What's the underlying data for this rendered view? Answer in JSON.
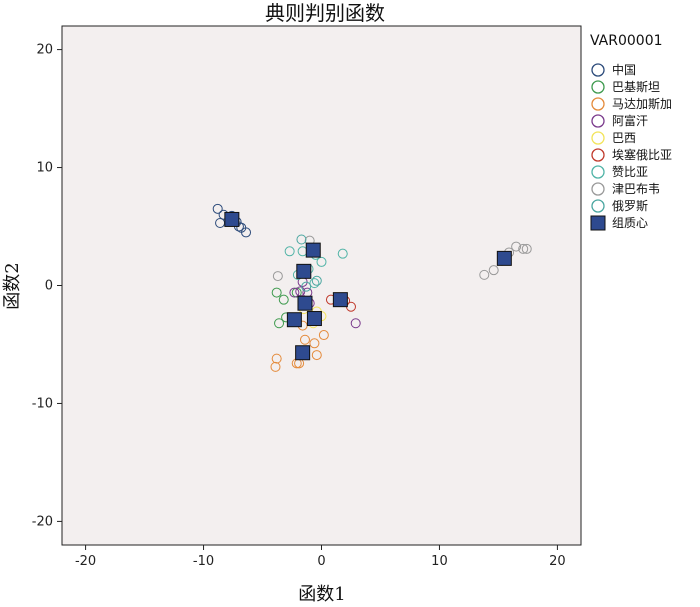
{
  "chart_data": {
    "type": "scatter",
    "title": "典则判别函数",
    "xlabel": "函数1",
    "ylabel": "函数2",
    "xlim": [
      -22,
      22
    ],
    "ylim": [
      -22,
      22
    ],
    "xticks": [
      -20,
      -10,
      0,
      10,
      20
    ],
    "yticks": [
      -20,
      -10,
      0,
      10,
      20
    ],
    "grid": false,
    "background": "#f3efef",
    "legend": {
      "title": "VAR00001",
      "placement": "right",
      "items": [
        {
          "label": "中国",
          "color": "#2b4a7a",
          "marker": "circle"
        },
        {
          "label": "巴基斯坦",
          "color": "#3e9a4e",
          "marker": "circle"
        },
        {
          "label": "马达加斯加",
          "color": "#e48a3a",
          "marker": "circle"
        },
        {
          "label": "阿富汗",
          "color": "#7a3a8c",
          "marker": "circle"
        },
        {
          "label": "巴西",
          "color": "#f2e45a",
          "marker": "circle"
        },
        {
          "label": "埃塞俄比亚",
          "color": "#c0392b",
          "marker": "circle"
        },
        {
          "label": "赞比亚",
          "color": "#4fb3a6",
          "marker": "circle"
        },
        {
          "label": "津巴布韦",
          "color": "#999999",
          "marker": "circle"
        },
        {
          "label": "俄罗斯",
          "color": "#4aa6a0",
          "marker": "circle"
        },
        {
          "label": "组质心",
          "color": "#2e4a8f",
          "marker": "square"
        }
      ]
    },
    "series": [
      {
        "name": "中国",
        "points": [
          [
            -8.8,
            6.5
          ],
          [
            -8.3,
            6.0
          ],
          [
            -7.6,
            5.9
          ],
          [
            -7.2,
            5.4
          ],
          [
            -6.8,
            4.9
          ],
          [
            -6.4,
            4.5
          ],
          [
            -7.0,
            5.0
          ],
          [
            -8.6,
            5.3
          ]
        ]
      },
      {
        "name": "巴基斯坦",
        "points": [
          [
            -3.6,
            -3.2
          ],
          [
            -3.0,
            -2.7
          ],
          [
            -3.8,
            -0.6
          ],
          [
            -3.2,
            -1.2
          ],
          [
            -2.1,
            -0.6
          ]
        ]
      },
      {
        "name": "马达加斯加",
        "points": [
          [
            -3.9,
            -6.9
          ],
          [
            -3.8,
            -6.2
          ],
          [
            -2.1,
            -6.6
          ],
          [
            -1.9,
            -6.6
          ],
          [
            -1.4,
            -4.6
          ],
          [
            -0.6,
            -4.9
          ],
          [
            -0.4,
            -5.9
          ],
          [
            0.2,
            -4.2
          ],
          [
            -1.6,
            -3.4
          ]
        ]
      },
      {
        "name": "阿富汗",
        "points": [
          [
            -2.3,
            -0.6
          ],
          [
            -1.8,
            -0.5
          ],
          [
            -1.2,
            -0.6
          ],
          [
            -1.6,
            0.3
          ],
          [
            -1.0,
            -1.5
          ],
          [
            2.9,
            -3.2
          ]
        ]
      },
      {
        "name": "巴西",
        "points": [
          [
            -1.5,
            -2.0
          ],
          [
            -0.7,
            -3.2
          ],
          [
            0.0,
            -2.6
          ],
          [
            -0.4,
            -2.2
          ]
        ]
      },
      {
        "name": "埃塞俄比亚",
        "points": [
          [
            0.8,
            -1.2
          ],
          [
            2.0,
            -1.3
          ],
          [
            2.5,
            -1.8
          ]
        ]
      },
      {
        "name": "赞比亚",
        "points": [
          [
            -2.7,
            2.9
          ],
          [
            -1.6,
            2.9
          ],
          [
            -0.5,
            2.6
          ],
          [
            0.0,
            2.0
          ],
          [
            1.8,
            2.7
          ],
          [
            -2.0,
            0.9
          ],
          [
            -1.1,
            1.4
          ],
          [
            -0.6,
            0.2
          ]
        ]
      },
      {
        "name": "津巴布韦",
        "points": [
          [
            13.8,
            0.9
          ],
          [
            14.6,
            1.3
          ],
          [
            15.3,
            2.1
          ],
          [
            15.9,
            2.8
          ],
          [
            16.5,
            3.3
          ],
          [
            17.1,
            3.1
          ],
          [
            17.4,
            3.1
          ],
          [
            -3.7,
            0.8
          ],
          [
            -1.0,
            3.8
          ]
        ]
      },
      {
        "name": "俄罗斯",
        "points": [
          [
            -1.7,
            3.9
          ],
          [
            -0.4,
            0.4
          ],
          [
            -1.3,
            -0.1
          ]
        ]
      },
      {
        "name": "组质心",
        "points": [
          [
            -7.6,
            5.6
          ],
          [
            -0.7,
            3.0
          ],
          [
            -1.5,
            1.2
          ],
          [
            -1.4,
            -1.5
          ],
          [
            1.6,
            -1.2
          ],
          [
            -0.6,
            -2.8
          ],
          [
            -2.3,
            -2.9
          ],
          [
            -1.6,
            -5.7
          ],
          [
            15.5,
            2.3
          ]
        ]
      }
    ]
  }
}
